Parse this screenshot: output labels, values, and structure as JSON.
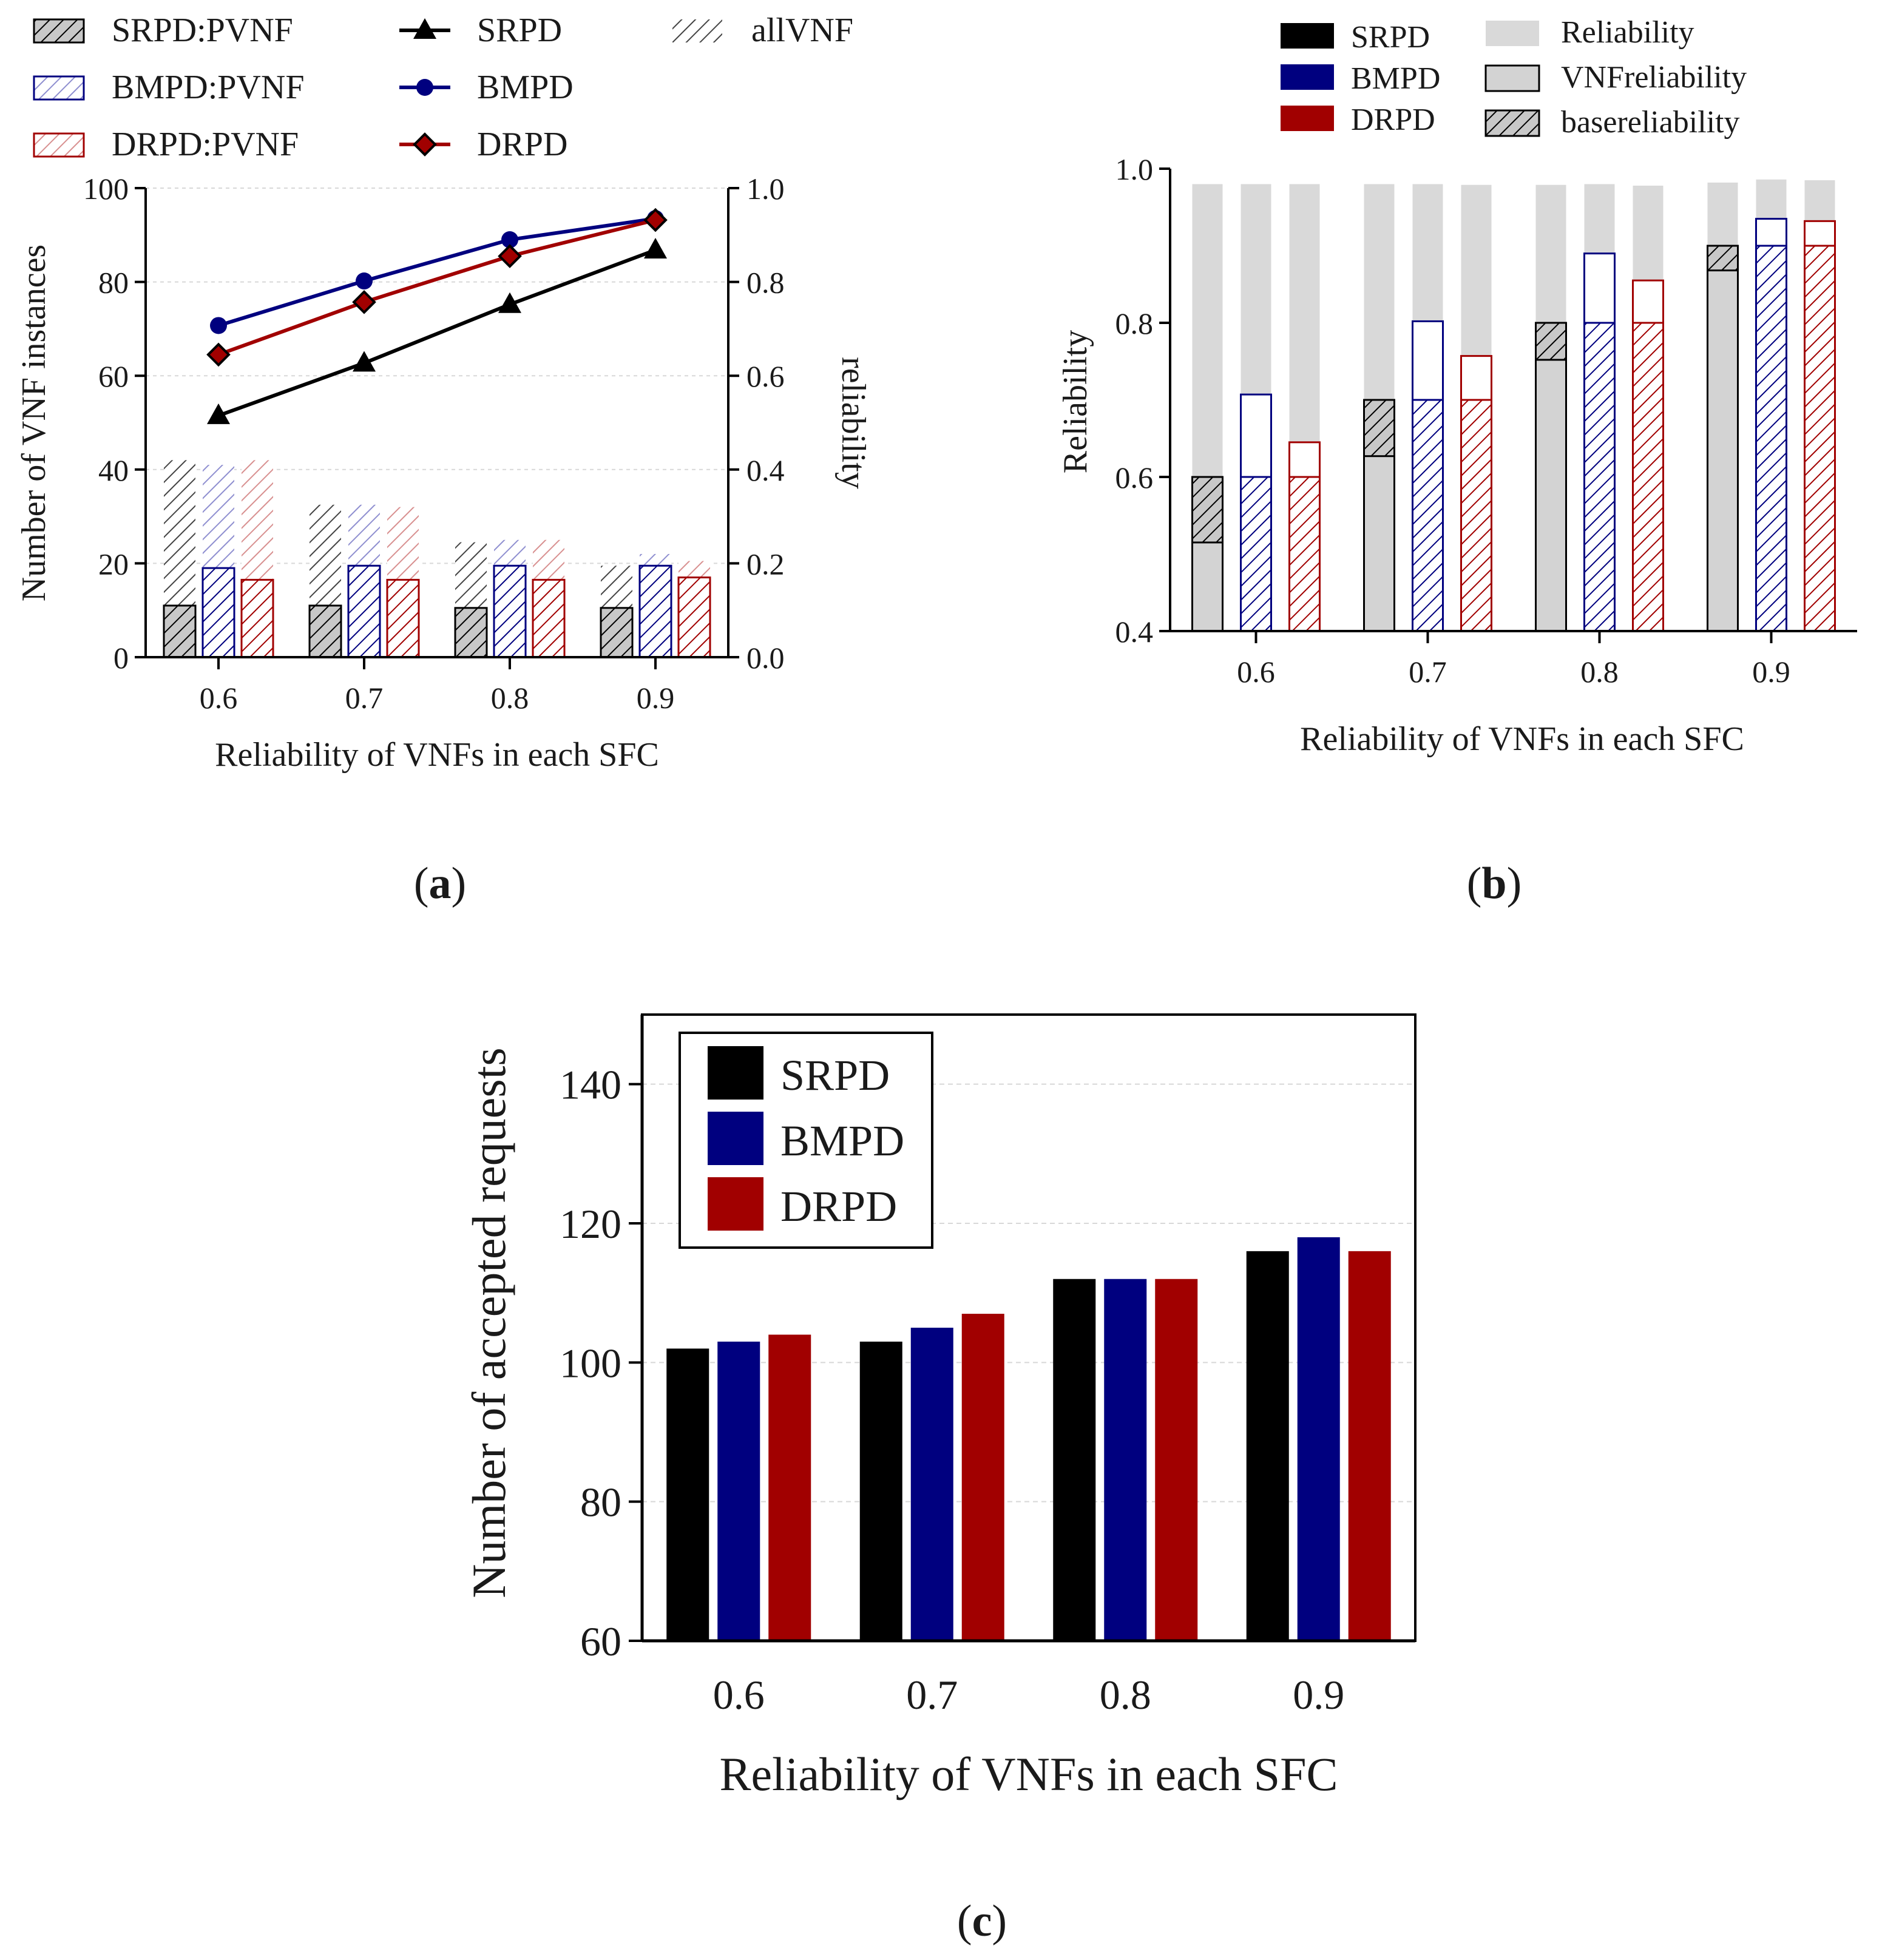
{
  "colors": {
    "srpd": "#000000",
    "bmpd": "#00007f",
    "drpd": "#a10000",
    "rel_bg": "#d9d9d9",
    "vnf_rel": "#d3d3d3",
    "grid": "#d8d8d8"
  },
  "panels": {
    "a": "(a)",
    "b": "(b)",
    "c": "(c)"
  },
  "chart_data": [
    {
      "id": "a",
      "type": "bar+line",
      "xlabel": "Reliability of VNFs in each SFC",
      "ylabel_left": "Number of VNF instances",
      "ylabel_right": "reliability",
      "categories": [
        "0.6",
        "0.7",
        "0.8",
        "0.9"
      ],
      "ylim_left": [
        0,
        100
      ],
      "yticks_left": [
        "0",
        "20",
        "40",
        "60",
        "80",
        "100"
      ],
      "ylim_right": [
        0.0,
        1.0
      ],
      "yticks_right": [
        "0.0",
        "0.2",
        "0.4",
        "0.6",
        "0.8",
        "1.0"
      ],
      "legend": {
        "bars": [
          "SRPD:PVNF",
          "BMPD:PVNF",
          "DRPD:PVNF"
        ],
        "lines": [
          "SRPD",
          "BMPD",
          "DRPD"
        ],
        "all": "allVNF"
      },
      "bar_series": [
        {
          "name": "SRPD:PVNF",
          "pvnf": [
            11,
            11,
            10.5,
            10.5
          ],
          "allvnf": [
            42,
            32.5,
            24.5,
            19.5
          ]
        },
        {
          "name": "BMPD:PVNF",
          "pvnf": [
            19,
            19.5,
            19.5,
            19.5
          ],
          "allvnf": [
            41,
            32.5,
            25,
            22
          ]
        },
        {
          "name": "DRPD:PVNF",
          "pvnf": [
            16.5,
            16.5,
            16.5,
            17
          ],
          "allvnf": [
            42,
            32,
            25,
            20.5
          ]
        }
      ],
      "line_series": [
        {
          "name": "SRPD",
          "values": [
            0.515,
            0.627,
            0.752,
            0.868
          ]
        },
        {
          "name": "BMPD",
          "values": [
            0.707,
            0.802,
            0.89,
            0.935
          ]
        },
        {
          "name": "DRPD",
          "values": [
            0.645,
            0.757,
            0.855,
            0.932
          ]
        }
      ]
    },
    {
      "id": "b",
      "type": "bar",
      "xlabel": "Reliability of VNFs in each SFC",
      "ylabel": "Reliability",
      "categories": [
        "0.6",
        "0.7",
        "0.8",
        "0.9"
      ],
      "ylim": [
        0.4,
        1.0
      ],
      "yticks": [
        "0.4",
        "0.6",
        "0.8",
        "1.0"
      ],
      "legend": {
        "left": [
          "SRPD",
          "BMPD",
          "DRPD"
        ],
        "right": [
          "Reliability",
          "VNFreliability",
          "basereliability"
        ]
      },
      "series": [
        {
          "name": "SRPD",
          "reliability": [
            0.98,
            0.98,
            0.979,
            0.982
          ],
          "vnf_reliability": [
            0.515,
            0.627,
            0.752,
            0.868
          ],
          "base_reliability": [
            0.6,
            0.7,
            0.8,
            0.9
          ]
        },
        {
          "name": "BMPD",
          "reliability": [
            0.98,
            0.98,
            0.98,
            0.986
          ],
          "vnf_reliability": [
            0.707,
            0.802,
            0.89,
            0.935
          ],
          "base_reliability": [
            0.6,
            0.7,
            0.8,
            0.9
          ]
        },
        {
          "name": "DRPD",
          "reliability": [
            0.98,
            0.979,
            0.978,
            0.985
          ],
          "vnf_reliability": [
            0.645,
            0.757,
            0.855,
            0.932
          ],
          "base_reliability": [
            0.6,
            0.7,
            0.8,
            0.9
          ]
        }
      ]
    },
    {
      "id": "c",
      "type": "bar",
      "xlabel": "Reliability of VNFs in each SFC",
      "ylabel": "Number of accepted requests",
      "categories": [
        "0.6",
        "0.7",
        "0.8",
        "0.9"
      ],
      "ylim": [
        60,
        150
      ],
      "yticks": [
        "60",
        "80",
        "100",
        "120",
        "140"
      ],
      "legend": [
        "SRPD",
        "BMPD",
        "DRPD"
      ],
      "series": [
        {
          "name": "SRPD",
          "values": [
            102,
            103,
            112,
            116
          ]
        },
        {
          "name": "BMPD",
          "values": [
            103,
            105,
            112,
            118
          ]
        },
        {
          "name": "DRPD",
          "values": [
            104,
            107,
            112,
            116
          ]
        }
      ]
    }
  ]
}
